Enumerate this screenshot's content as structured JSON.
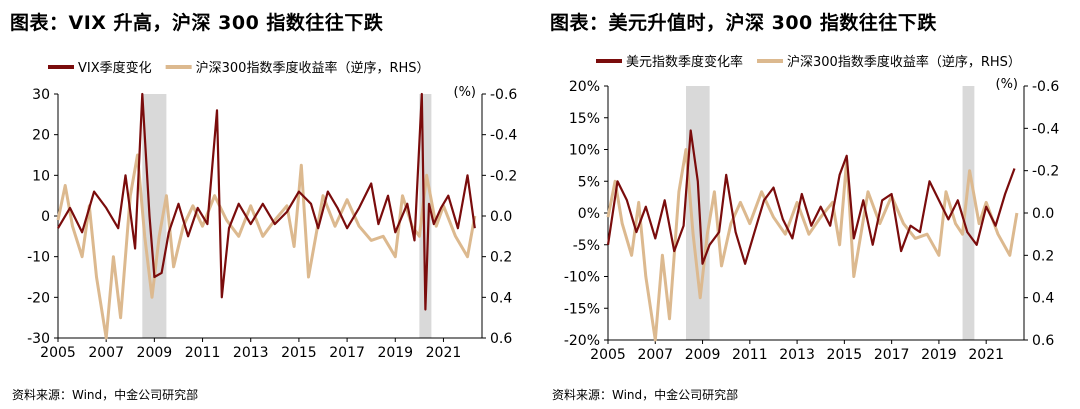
{
  "chart_data": [
    {
      "type": "line",
      "title": "图表：VIX 升高，沪深 300 指数往往下跌",
      "source": "资料来源：Wind，中金公司研究部",
      "series": [
        {
          "name": "VIX季度变化",
          "color": "#7a0c0c",
          "axis": "left",
          "x": [
            2005.0,
            2005.5,
            2006.0,
            2006.5,
            2007.0,
            2007.5,
            2007.8,
            2008.2,
            2008.5,
            2008.8,
            2009.0,
            2009.3,
            2009.6,
            2010.0,
            2010.4,
            2010.8,
            2011.2,
            2011.6,
            2011.8,
            2012.1,
            2012.5,
            2013.0,
            2013.5,
            2014.0,
            2014.5,
            2015.0,
            2015.5,
            2015.8,
            2016.2,
            2016.6,
            2017.0,
            2017.5,
            2018.0,
            2018.3,
            2018.7,
            2019.0,
            2019.5,
            2019.8,
            2020.1,
            2020.25,
            2020.4,
            2020.6,
            2020.9,
            2021.2,
            2021.6,
            2022.0,
            2022.3
          ],
          "values": [
            -3,
            2,
            -4,
            6,
            2,
            -3,
            10,
            -8,
            30,
            0,
            -15,
            -14,
            -4,
            3,
            -5,
            2,
            -2,
            26,
            -20,
            -3,
            3,
            -2,
            3,
            -2,
            1,
            6,
            3,
            -3,
            6,
            2,
            -3,
            2,
            8,
            -2,
            5,
            -4,
            3,
            -6,
            30,
            -23,
            3,
            -2,
            2,
            5,
            -3,
            10,
            -3
          ]
        },
        {
          "name": "沪深300指数季度收益率（逆序，RHS）",
          "color": "#dcb98f",
          "axis": "right",
          "x": [
            2005.0,
            2005.3,
            2005.6,
            2006.0,
            2006.3,
            2006.6,
            2007.0,
            2007.3,
            2007.6,
            2008.0,
            2008.3,
            2008.6,
            2008.9,
            2009.2,
            2009.5,
            2009.8,
            2010.2,
            2010.6,
            2011.0,
            2011.5,
            2012.0,
            2012.5,
            2013.0,
            2013.5,
            2014.0,
            2014.5,
            2014.8,
            2015.1,
            2015.4,
            2015.7,
            2016.0,
            2016.5,
            2017.0,
            2017.5,
            2018.0,
            2018.5,
            2019.0,
            2019.3,
            2019.7,
            2020.0,
            2020.3,
            2020.7,
            2021.0,
            2021.5,
            2022.0,
            2022.3
          ],
          "values": [
            0.02,
            -0.15,
            0.05,
            0.2,
            -0.05,
            0.3,
            0.6,
            0.2,
            0.5,
            -0.1,
            -0.3,
            0.1,
            0.4,
            0.1,
            -0.1,
            0.25,
            0.05,
            -0.05,
            0.05,
            -0.1,
            0.02,
            0.1,
            -0.05,
            0.1,
            0.02,
            -0.05,
            0.15,
            -0.25,
            0.3,
            0.1,
            -0.1,
            0.05,
            -0.08,
            0.05,
            0.12,
            0.1,
            0.2,
            -0.1,
            0.05,
            0.1,
            -0.2,
            0.05,
            -0.05,
            0.1,
            0.2,
            0.0
          ]
        }
      ],
      "xlim": [
        2005,
        2022.6
      ],
      "xticks": [
        "2005",
        "2007",
        "2009",
        "2011",
        "2013",
        "2015",
        "2017",
        "2019",
        "2021"
      ],
      "ylim": [
        -30,
        30
      ],
      "yticks": [
        "-30",
        "-20",
        "-10",
        "0",
        "10",
        "20",
        "30"
      ],
      "y2lim": [
        0.6,
        -0.6
      ],
      "y2ticks": [
        "0.6",
        "0.4",
        "0.2",
        "0.0",
        "-0.2",
        "-0.4",
        "-0.6"
      ],
      "y2unit": "(%)",
      "shaded": [
        [
          2008.5,
          2009.5
        ],
        [
          2020.0,
          2020.5
        ]
      ]
    },
    {
      "type": "line",
      "title": "图表：美元升值时，沪深 300 指数往往下跌",
      "source": "资料来源：Wind，中金公司研究部",
      "series": [
        {
          "name": "美元指数季度变化率",
          "color": "#7a0c0c",
          "axis": "left",
          "x": [
            2005.0,
            2005.4,
            2005.8,
            2006.2,
            2006.6,
            2007.0,
            2007.4,
            2007.8,
            2008.2,
            2008.5,
            2008.8,
            2009.0,
            2009.3,
            2009.7,
            2010.0,
            2010.4,
            2010.8,
            2011.2,
            2011.6,
            2012.0,
            2012.4,
            2012.8,
            2013.2,
            2013.6,
            2014.0,
            2014.4,
            2014.8,
            2015.1,
            2015.4,
            2015.8,
            2016.2,
            2016.6,
            2017.0,
            2017.4,
            2017.8,
            2018.2,
            2018.6,
            2019.0,
            2019.4,
            2019.8,
            2020.2,
            2020.6,
            2021.0,
            2021.4,
            2021.8,
            2022.2
          ],
          "values": [
            -5,
            5,
            2,
            -3,
            1,
            -4,
            2,
            -6,
            -2,
            13,
            5,
            -8,
            -5,
            -3,
            6,
            -3,
            -8,
            -3,
            2,
            4,
            -1,
            -4,
            3,
            -2,
            1,
            -2,
            6,
            9,
            -4,
            2,
            -5,
            2,
            3,
            -6,
            -2,
            -3,
            5,
            2,
            -1,
            2,
            -3,
            -5,
            1,
            -2,
            3,
            7
          ]
        },
        {
          "name": "沪深300指数季度收益率（逆序，RHS）",
          "color": "#dcb98f",
          "axis": "right",
          "x": [
            2005.0,
            2005.3,
            2005.6,
            2006.0,
            2006.3,
            2006.6,
            2007.0,
            2007.3,
            2007.6,
            2008.0,
            2008.3,
            2008.6,
            2008.9,
            2009.2,
            2009.5,
            2009.8,
            2010.2,
            2010.6,
            2011.0,
            2011.5,
            2012.0,
            2012.5,
            2013.0,
            2013.5,
            2014.0,
            2014.5,
            2014.8,
            2015.1,
            2015.4,
            2015.7,
            2016.0,
            2016.5,
            2017.0,
            2017.5,
            2018.0,
            2018.5,
            2019.0,
            2019.3,
            2019.7,
            2020.0,
            2020.3,
            2020.7,
            2021.0,
            2021.5,
            2022.0,
            2022.3
          ],
          "values": [
            0.02,
            -0.15,
            0.05,
            0.2,
            -0.05,
            0.3,
            0.6,
            0.2,
            0.5,
            -0.1,
            -0.3,
            0.1,
            0.4,
            0.1,
            -0.1,
            0.25,
            0.05,
            -0.05,
            0.05,
            -0.1,
            0.02,
            0.1,
            -0.05,
            0.1,
            0.02,
            -0.05,
            0.15,
            -0.25,
            0.3,
            0.1,
            -0.1,
            0.05,
            -0.08,
            0.05,
            0.12,
            0.1,
            0.2,
            -0.1,
            0.05,
            0.1,
            -0.2,
            0.05,
            -0.05,
            0.1,
            0.2,
            0.0
          ]
        }
      ],
      "xlim": [
        2005,
        2022.6
      ],
      "xticks": [
        "2005",
        "2007",
        "2009",
        "2011",
        "2013",
        "2015",
        "2017",
        "2019",
        "2021"
      ],
      "ylim": [
        -20,
        20
      ],
      "yticks": [
        "-20%",
        "-15%",
        "-10%",
        "-5%",
        "0%",
        "5%",
        "10%",
        "15%",
        "20%"
      ],
      "y2lim": [
        0.6,
        -0.6
      ],
      "y2ticks": [
        "0.6",
        "0.4",
        "0.2",
        "0.0",
        "-0.2",
        "-0.4",
        "-0.6"
      ],
      "y2unit": "(%)",
      "shaded": [
        [
          2008.3,
          2009.3
        ],
        [
          2020.0,
          2020.5
        ]
      ]
    }
  ]
}
